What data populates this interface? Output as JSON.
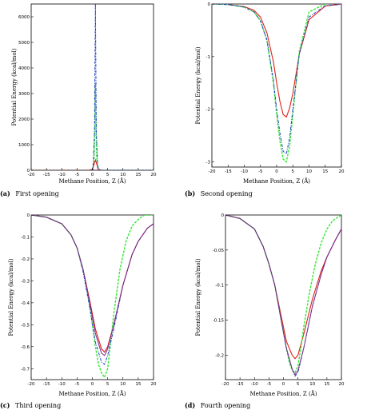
{
  "colors": {
    "red": "#e0201b",
    "green": "#33e633",
    "blue": "#1e3fc8",
    "purple": "#7a2a8a",
    "axis": "#000000"
  },
  "series_styles": {
    "red": {
      "color": "#e0201b",
      "dash": "none",
      "width": 1.1
    },
    "green": {
      "color": "#33e633",
      "dash": "3,1.5",
      "width": 1.4
    },
    "blue": {
      "color": "#1e3fc8",
      "dash": "3.5,1.5,1,1.5",
      "width": 1.0
    },
    "purple": {
      "color": "#7a2a8a",
      "dash": "none",
      "width": 1.0
    }
  },
  "chart_data": [
    {
      "type": "line",
      "caption_tag": "(a)",
      "caption_text": "First opening",
      "xlabel": "Methane Position, Z (Å)",
      "ylabel": "Potential Energy (kcal/mol)",
      "xlim": [
        -20,
        20
      ],
      "ylim": [
        0,
        6500
      ],
      "xticks": [
        -20,
        -15,
        -10,
        -5,
        0,
        5,
        10,
        15,
        20
      ],
      "yticks": [
        0,
        1000,
        2000,
        3000,
        4000,
        5000,
        6000
      ],
      "ytick_labels": [
        "0",
        "1000",
        "2000",
        "3000",
        "4000",
        "5000",
        "6000"
      ],
      "series": [
        {
          "style": "green",
          "x": [
            -20,
            -2,
            0,
            0.5,
            0.8,
            1.0,
            1.2,
            1.5,
            2.0,
            2.5,
            4,
            20
          ],
          "y": [
            0,
            0,
            20,
            300,
            1500,
            3400,
            1500,
            300,
            60,
            10,
            0,
            0
          ]
        },
        {
          "style": "red",
          "x": [
            -20,
            -1,
            0,
            0.6,
            1.0,
            1.4,
            2.0,
            3,
            20
          ],
          "y": [
            0,
            0,
            30,
            250,
            400,
            250,
            30,
            0,
            0
          ]
        },
        {
          "style": "blue",
          "x": [
            -20,
            -1,
            0.2,
            0.7,
            1.0,
            1.3,
            1.8,
            2.5,
            20
          ],
          "y": [
            0,
            0,
            20,
            1500,
            6500,
            1500,
            20,
            0,
            0
          ]
        }
      ]
    },
    {
      "type": "line",
      "caption_tag": "(b)",
      "caption_text": "Second opening",
      "xlabel": "Methane Position, Z (Å)",
      "ylabel": "Potential Energy (kcal/mol)",
      "xlim": [
        -20,
        20
      ],
      "ylim": [
        -3.1,
        0
      ],
      "xticks": [
        -20,
        -15,
        -10,
        -5,
        0,
        5,
        10,
        15,
        20
      ],
      "yticks": [
        -3,
        -2,
        -1,
        0
      ],
      "ytick_labels": [
        "-3",
        "-2",
        "-1",
        "0"
      ],
      "series": [
        {
          "style": "red",
          "x": [
            -20,
            -15,
            -10,
            -7,
            -5,
            -3,
            -1,
            0,
            1,
            2,
            3,
            4,
            5,
            7,
            10,
            15,
            20
          ],
          "y": [
            0,
            -0.01,
            -0.05,
            -0.12,
            -0.25,
            -0.55,
            -1.1,
            -1.5,
            -1.85,
            -2.1,
            -2.15,
            -1.98,
            -1.7,
            -0.95,
            -0.3,
            -0.04,
            0
          ]
        },
        {
          "style": "green",
          "x": [
            -20,
            -15,
            -10,
            -7,
            -5,
            -3,
            -1,
            0,
            1,
            2,
            3,
            4,
            5,
            7,
            10,
            15,
            18,
            20
          ],
          "y": [
            0,
            -0.01,
            -0.06,
            -0.15,
            -0.32,
            -0.7,
            -1.5,
            -2.1,
            -2.6,
            -2.95,
            -3.0,
            -2.7,
            -2.1,
            -0.9,
            -0.15,
            0,
            0.03,
            0
          ]
        },
        {
          "style": "blue",
          "x": [
            -20,
            -15,
            -10,
            -7,
            -5,
            -3,
            -1,
            0,
            1,
            2,
            3,
            4,
            5,
            7,
            10,
            15,
            20
          ],
          "y": [
            0,
            -0.01,
            -0.06,
            -0.15,
            -0.32,
            -0.68,
            -1.45,
            -2.0,
            -2.45,
            -2.8,
            -2.85,
            -2.55,
            -2.0,
            -0.95,
            -0.25,
            -0.03,
            -0.01
          ]
        }
      ]
    },
    {
      "type": "line",
      "caption_tag": "(c)",
      "caption_text": "Third opening",
      "xlabel": "Methane Position, Z (Å)",
      "ylabel": "Potential Energy (kcal/mol)",
      "xlim": [
        -20,
        20
      ],
      "ylim": [
        -0.75,
        0
      ],
      "xticks": [
        -20,
        -15,
        -10,
        -5,
        0,
        5,
        10,
        15,
        20
      ],
      "yticks": [
        -0.7,
        -0.6,
        -0.5,
        -0.4,
        -0.3,
        -0.2,
        -0.1,
        0
      ],
      "ytick_labels": [
        "-0.7",
        "-0.6",
        "-0.5",
        "-0.4",
        "-0.3",
        "-0.2",
        "-0.1",
        "0"
      ],
      "series": [
        {
          "style": "red",
          "x": [
            -20,
            -15,
            -10,
            -7,
            -5,
            -3,
            -1,
            1,
            3,
            4,
            5,
            7,
            10,
            13,
            15,
            18,
            20
          ],
          "y": [
            0,
            -0.01,
            -0.04,
            -0.09,
            -0.15,
            -0.25,
            -0.38,
            -0.52,
            -0.61,
            -0.625,
            -0.6,
            -0.5,
            -0.32,
            -0.18,
            -0.12,
            -0.06,
            -0.04
          ]
        },
        {
          "style": "green",
          "x": [
            -20,
            -15,
            -10,
            -7,
            -5,
            -3,
            -1,
            1,
            2,
            3,
            4,
            5,
            6,
            7,
            9,
            11,
            13,
            15,
            17,
            20
          ],
          "y": [
            0,
            -0.01,
            -0.04,
            -0.09,
            -0.15,
            -0.25,
            -0.4,
            -0.6,
            -0.68,
            -0.72,
            -0.74,
            -0.7,
            -0.58,
            -0.45,
            -0.25,
            -0.12,
            -0.05,
            -0.02,
            0.0,
            0.0
          ]
        },
        {
          "style": "blue",
          "x": [
            -20,
            -15,
            -10,
            -7,
            -5,
            -3,
            -1,
            1,
            3,
            4,
            5,
            7,
            10,
            13,
            15,
            18,
            20
          ],
          "y": [
            0,
            -0.01,
            -0.04,
            -0.09,
            -0.15,
            -0.26,
            -0.41,
            -0.58,
            -0.67,
            -0.68,
            -0.64,
            -0.52,
            -0.32,
            -0.18,
            -0.12,
            -0.06,
            -0.04
          ]
        },
        {
          "style": "purple",
          "x": [
            -20,
            -15,
            -10,
            -7,
            -5,
            -3,
            -1,
            1,
            3,
            4,
            5,
            7,
            10,
            13,
            15,
            18,
            20
          ],
          "y": [
            0,
            -0.01,
            -0.04,
            -0.09,
            -0.15,
            -0.25,
            -0.39,
            -0.54,
            -0.63,
            -0.64,
            -0.61,
            -0.5,
            -0.32,
            -0.18,
            -0.12,
            -0.06,
            -0.04
          ]
        }
      ]
    },
    {
      "type": "line",
      "caption_tag": "(d)",
      "caption_text": "Fourth opening",
      "xlabel": "Methane Position, Z (Å)",
      "ylabel": "Potential Energy (kcal/mol)",
      "xlim": [
        -20,
        20
      ],
      "ylim": [
        -0.235,
        0
      ],
      "xticks": [
        -20,
        -15,
        -10,
        -5,
        0,
        5,
        10,
        15,
        20
      ],
      "yticks": [
        -0.2,
        -0.15,
        -0.1,
        -0.05,
        0
      ],
      "ytick_labels": [
        "-0.2",
        "-0.15",
        "-0.1",
        "-0.05",
        "0"
      ],
      "series": [
        {
          "style": "red",
          "x": [
            -20,
            -15,
            -10,
            -7,
            -5,
            -3,
            -1,
            1,
            3,
            4,
            5,
            7,
            10,
            13,
            15,
            18,
            20
          ],
          "y": [
            0,
            -0.005,
            -0.02,
            -0.045,
            -0.07,
            -0.1,
            -0.14,
            -0.18,
            -0.2,
            -0.205,
            -0.2,
            -0.17,
            -0.12,
            -0.08,
            -0.06,
            -0.035,
            -0.02
          ]
        },
        {
          "style": "green",
          "x": [
            -20,
            -15,
            -10,
            -7,
            -5,
            -3,
            -1,
            1,
            2,
            3,
            4,
            5,
            6,
            7,
            9,
            11,
            13,
            15,
            17,
            20
          ],
          "y": [
            0,
            -0.005,
            -0.02,
            -0.045,
            -0.07,
            -0.1,
            -0.145,
            -0.19,
            -0.21,
            -0.222,
            -0.225,
            -0.215,
            -0.19,
            -0.16,
            -0.11,
            -0.07,
            -0.04,
            -0.02,
            -0.008,
            0
          ]
        },
        {
          "style": "blue",
          "x": [
            -20,
            -15,
            -10,
            -7,
            -5,
            -3,
            -1,
            1,
            3,
            4,
            5,
            7,
            10,
            13,
            15,
            18,
            20
          ],
          "y": [
            0,
            -0.005,
            -0.02,
            -0.045,
            -0.07,
            -0.1,
            -0.145,
            -0.19,
            -0.22,
            -0.23,
            -0.225,
            -0.19,
            -0.13,
            -0.085,
            -0.06,
            -0.035,
            -0.02
          ]
        },
        {
          "style": "purple",
          "x": [
            -20,
            -15,
            -10,
            -7,
            -5,
            -3,
            -1,
            1,
            3,
            4,
            5,
            7,
            10,
            13,
            15,
            18,
            20
          ],
          "y": [
            0,
            -0.005,
            -0.02,
            -0.045,
            -0.07,
            -0.1,
            -0.145,
            -0.19,
            -0.22,
            -0.228,
            -0.222,
            -0.19,
            -0.13,
            -0.085,
            -0.06,
            -0.035,
            -0.02
          ]
        }
      ]
    }
  ]
}
